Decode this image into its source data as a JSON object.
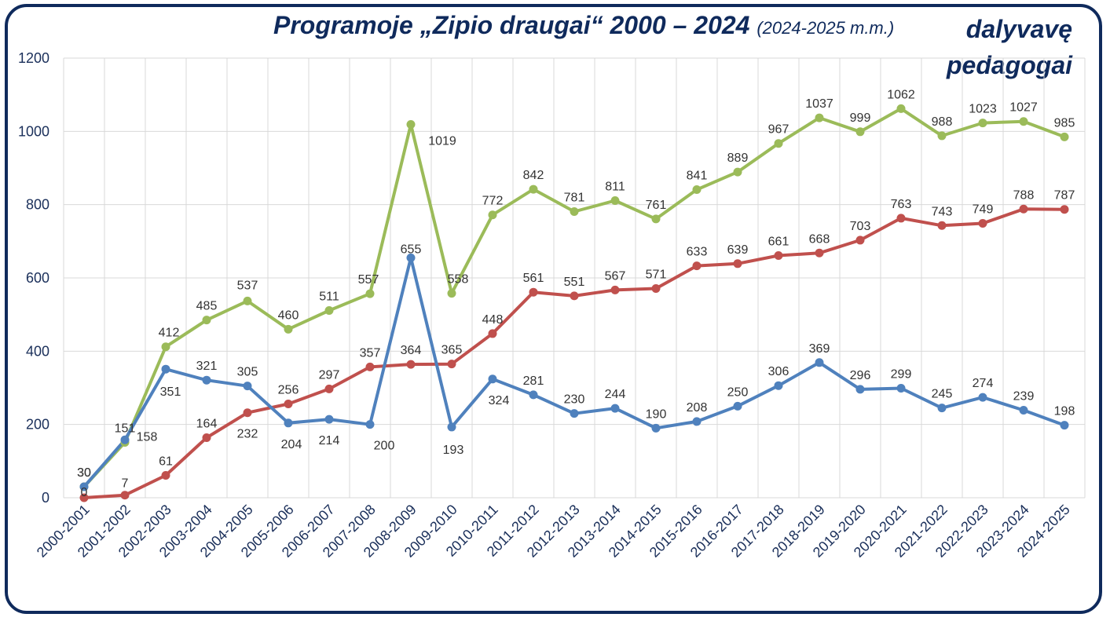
{
  "title": "Programoje „Zipio draugai“ 2000 – 2024",
  "subtitle": "(2024-2025 m.m.)",
  "title_right_line1": "dalyvavę",
  "title_right_line2": "pedagogai",
  "chart_data": {
    "type": "line",
    "categories": [
      "2000-2001",
      "2001-2002",
      "2002-2003",
      "2003-2004",
      "2004-2005",
      "2005-2006",
      "2006-2007",
      "2007-2008",
      "2008-2009",
      "2009-2010",
      "2010-2011",
      "2011-2012",
      "2012-2013",
      "2013-2014",
      "2014-2015",
      "2015-2016",
      "2016-2017",
      "2017-2018",
      "2018-2019",
      "2019-2020",
      "2020-2021",
      "2021-2022",
      "2022-2023",
      "2023-2024",
      "2024-2025"
    ],
    "ylim": [
      0,
      1200
    ],
    "yticks": [
      "0",
      "200",
      "400",
      "600",
      "800",
      "1000",
      "1200"
    ],
    "grid": true,
    "series": [
      {
        "color": "#9bbb59",
        "values": [
          30,
          151,
          412,
          485,
          537,
          460,
          511,
          557,
          1019,
          558,
          772,
          842,
          781,
          811,
          761,
          841,
          889,
          967,
          1037,
          999,
          1062,
          988,
          1023,
          1027,
          985
        ],
        "labels": [
          "30",
          "151",
          "412",
          "485",
          "537",
          "460",
          "511",
          "557",
          "1019",
          "558",
          "772",
          "842",
          "781",
          "811",
          "761",
          "841",
          "889",
          "967",
          "1037",
          "999",
          "1062",
          "988",
          "1023",
          "1027",
          "985"
        ]
      },
      {
        "color": "#c0504d",
        "values": [
          0,
          7,
          61,
          164,
          232,
          256,
          297,
          357,
          364,
          365,
          448,
          561,
          551,
          567,
          571,
          633,
          639,
          661,
          668,
          703,
          763,
          743,
          749,
          788,
          787
        ],
        "labels": [
          "0",
          "7",
          "61",
          "164",
          "232",
          "256",
          "297",
          "357",
          "364",
          "365",
          "448",
          "561",
          "551",
          "567",
          "571",
          "633",
          "639",
          "661",
          "668",
          "703",
          "763",
          "743",
          "749",
          "788",
          "787"
        ]
      },
      {
        "color": "#4f81bd",
        "values": [
          30,
          158,
          351,
          321,
          305,
          204,
          214,
          200,
          655,
          193,
          324,
          281,
          230,
          244,
          190,
          208,
          250,
          306,
          369,
          296,
          299,
          245,
          274,
          239,
          198
        ],
        "labels": [
          "30",
          "158",
          "351",
          "321",
          "305",
          "204",
          "214",
          "200",
          "655",
          "193",
          "324",
          "281",
          "230",
          "244",
          "190",
          "208",
          "250",
          "306",
          "369",
          "296",
          "299",
          "245",
          "274",
          "239",
          "198"
        ]
      }
    ]
  }
}
